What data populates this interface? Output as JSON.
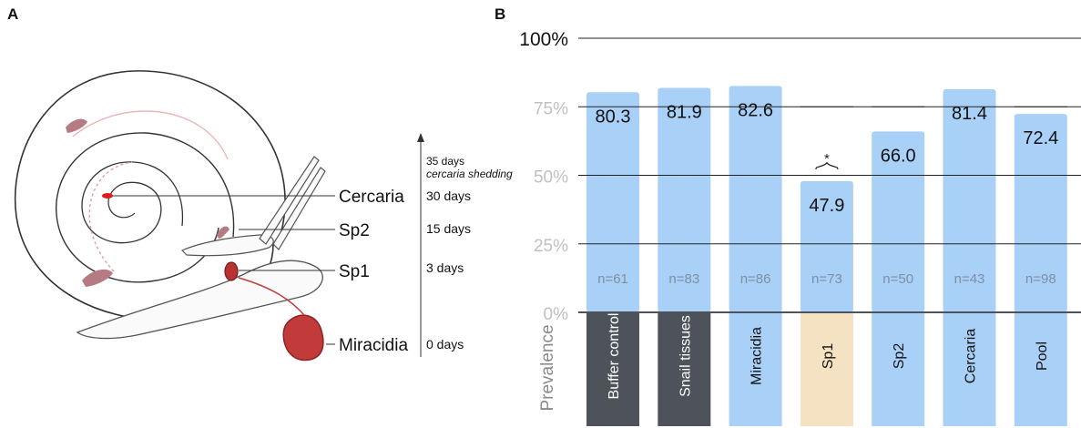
{
  "panel_a": {
    "label": "A",
    "stages": [
      {
        "name": "Cercaria",
        "days": "30 days"
      },
      {
        "name": "Sp2",
        "days": "15 days"
      },
      {
        "name": "Sp1",
        "days": "3 days"
      },
      {
        "name": "Miracidia",
        "days": "0 days"
      }
    ],
    "top_days": "35 days",
    "top_note": "cercaria shedding"
  },
  "panel_b": {
    "label": "B",
    "prevalence_label": "Prevalence",
    "significance_marker": "*"
  },
  "chart_data": {
    "type": "bar",
    "title": "",
    "xlabel": "",
    "ylabel": "Prevalence",
    "ylim": [
      0,
      100
    ],
    "yticks": [
      "0%",
      "25%",
      "50%",
      "75%",
      "100%"
    ],
    "grid": true,
    "categories": [
      "Buffer control",
      "Snail tissues",
      "Miracidia",
      "Sp1",
      "Sp2",
      "Cercaria",
      "Pool"
    ],
    "values": [
      80.3,
      81.9,
      82.6,
      47.9,
      66.0,
      81.4,
      72.4
    ],
    "value_labels": [
      "80.3",
      "81.9",
      "82.6",
      "47.9",
      "66.0",
      "81.4",
      "72.4"
    ],
    "n_labels": [
      "n=61",
      "n=83",
      "n=86",
      "n=73",
      "n=50",
      "n=43",
      "n=98"
    ],
    "colors": {
      "bar": "#a9d1f8",
      "label_box_dark": "#4e535b",
      "label_box_light": "#a9d1f8",
      "label_box_highlight": "#f5e2c2",
      "grid": "#222222",
      "tick": "#c0c0c0",
      "top_tick": "#111111",
      "n_text": "#7f8ea3"
    },
    "label_box_styles": [
      "dark",
      "dark",
      "light",
      "highlight",
      "light",
      "light",
      "light"
    ]
  }
}
